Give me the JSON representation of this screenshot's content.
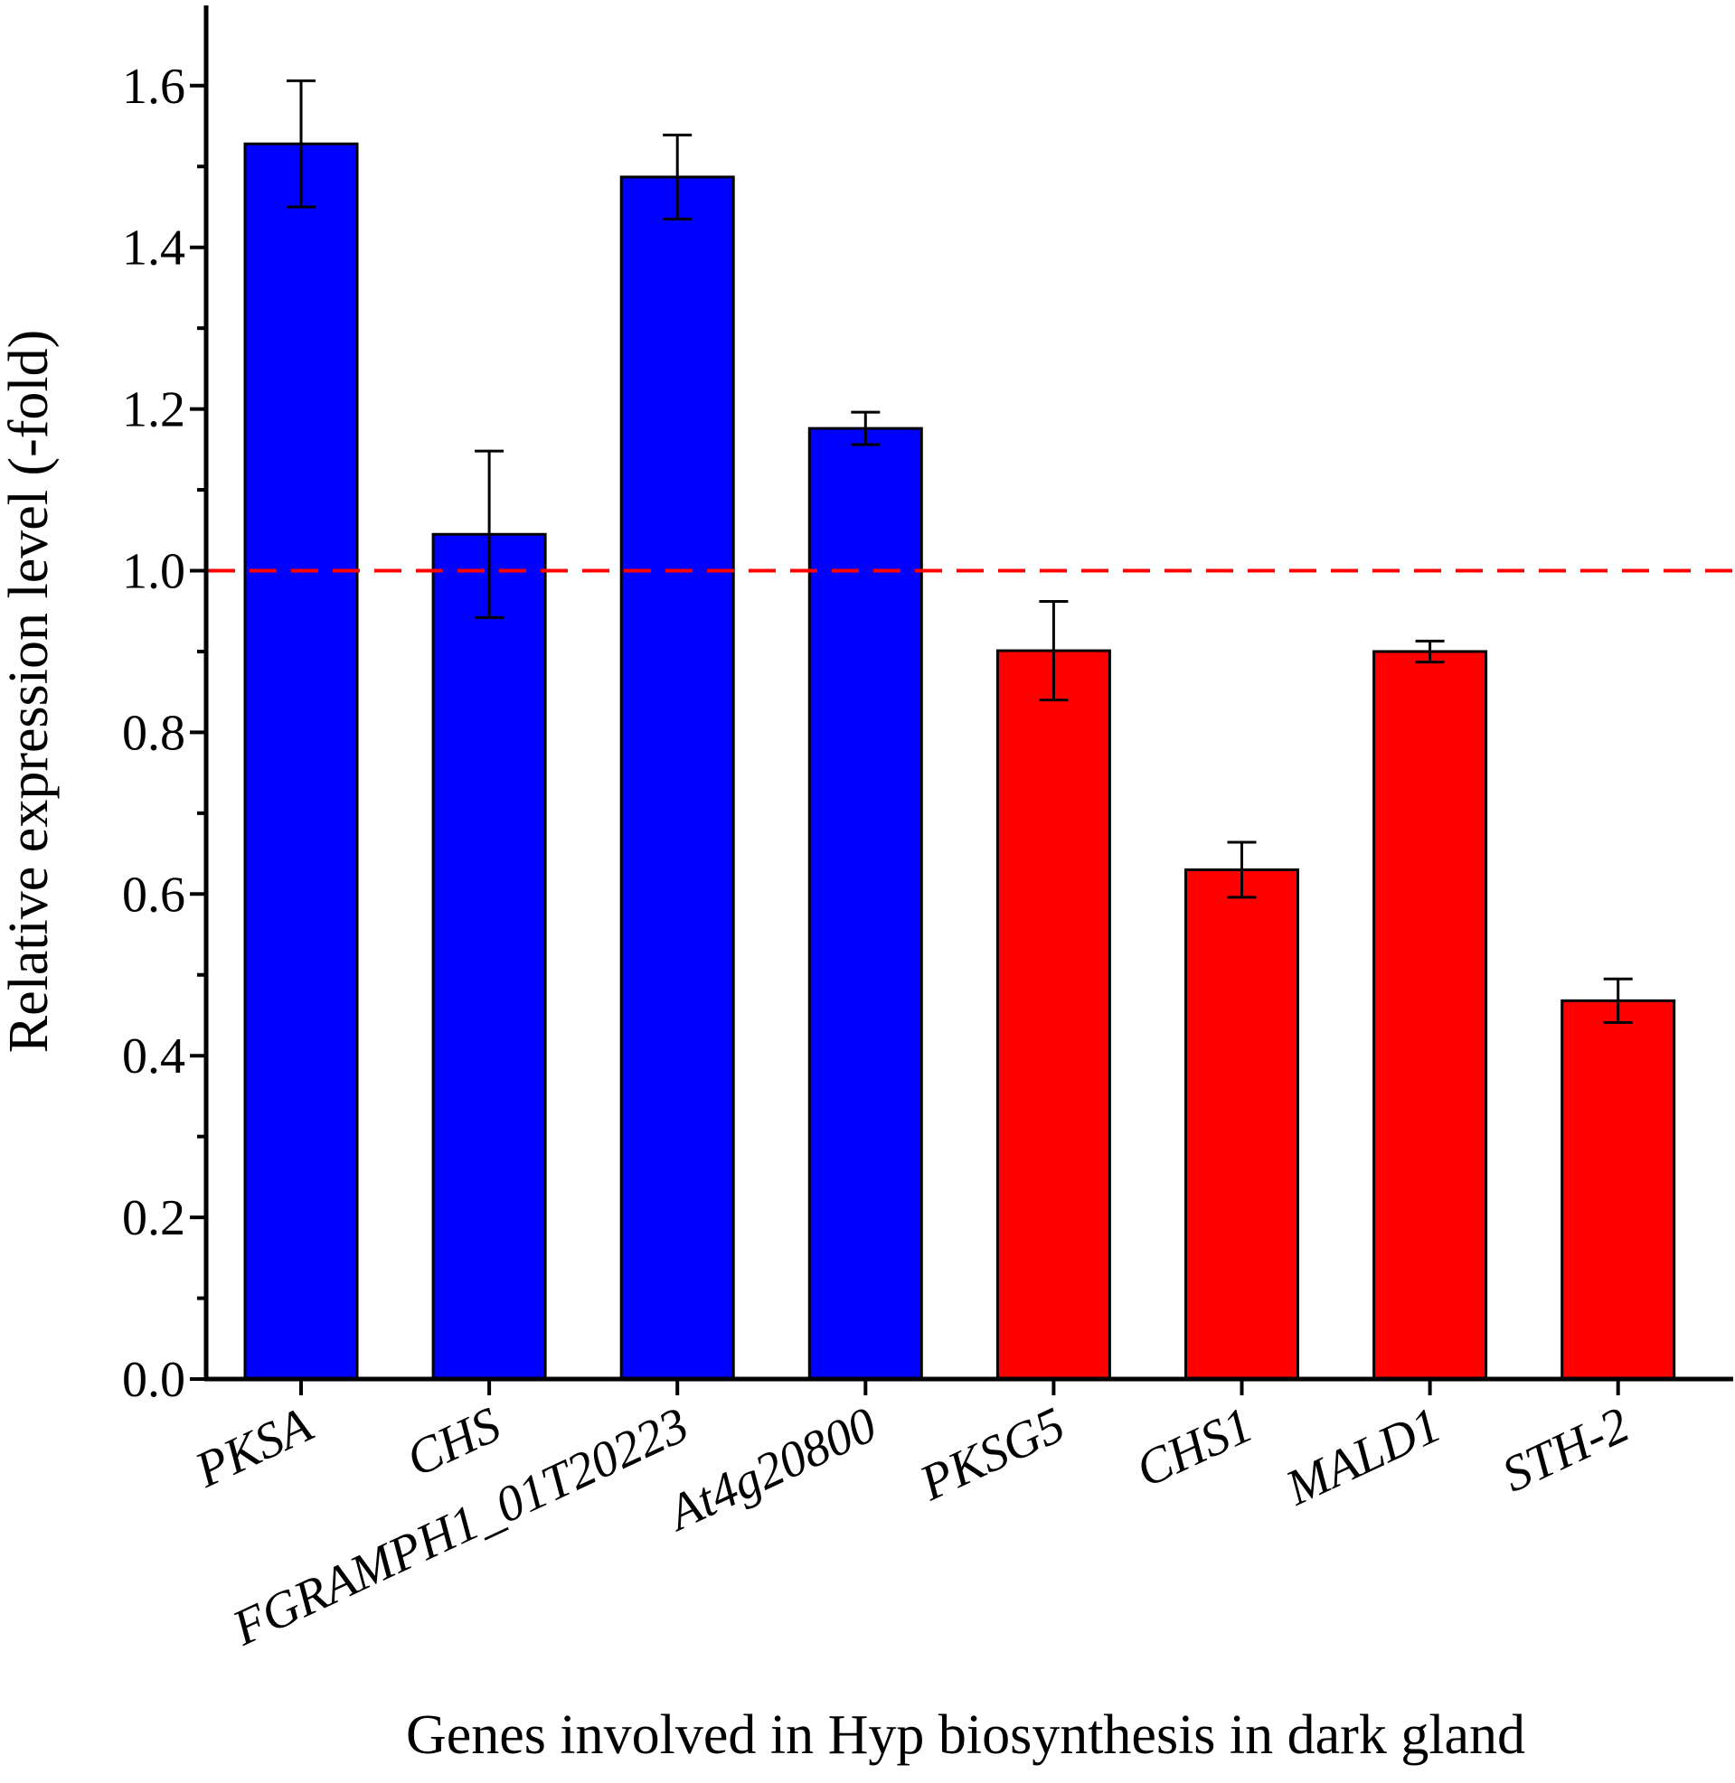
{
  "chart_data": {
    "type": "bar",
    "categories": [
      "PKSA",
      "CHS",
      "FGRAMPH1_01T20223",
      "At4g20800",
      "PKSG5",
      "CHS1",
      "MALD1",
      "STH-2"
    ],
    "values": [
      1.528,
      1.045,
      1.487,
      1.176,
      0.901,
      0.63,
      0.9,
      0.468
    ],
    "errors": [
      0.078,
      0.103,
      0.052,
      0.02,
      0.061,
      0.034,
      0.013,
      0.027
    ],
    "bar_colors": [
      "#0000ff",
      "#0000ff",
      "#0000ff",
      "#0000ff",
      "#ff0000",
      "#ff0000",
      "#ff0000",
      "#ff0000"
    ],
    "reference_line": {
      "value": 1.0,
      "color": "#ff0000",
      "style": "dashed"
    },
    "xlabel": "Genes involved in Hyp biosynthesis in dark gland",
    "ylabel": "Relative expression level (-fold)",
    "ylim": [
      0,
      1.7
    ],
    "yticks": [
      "0.0",
      "0.2",
      "0.4",
      "0.6",
      "0.8",
      "1.0",
      "1.2",
      "1.4",
      "1.6"
    ],
    "ytick_values": [
      0,
      0.2,
      0.4,
      0.6,
      0.8,
      1.0,
      1.2,
      1.4,
      1.6
    ],
    "grid": false,
    "legend": "none"
  }
}
